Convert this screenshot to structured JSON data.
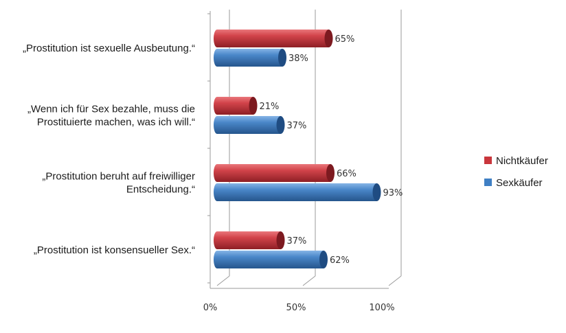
{
  "chart_data": {
    "type": "bar",
    "orientation": "horizontal",
    "style": "3d-cylinder",
    "categories": [
      [
        "„Prostitution ist sexuelle Ausbeutung.“"
      ],
      [
        "„Wenn ich für Sex bezahle, muss die",
        "Prostituierte machen, was ich will.“"
      ],
      [
        "„Prostitution beruht auf freiwilliger",
        "Entscheidung.“"
      ],
      [
        "„Prostitution ist konsensueller Sex.“"
      ]
    ],
    "series": [
      {
        "name": "Nichtkäufer",
        "color": "#c9363c",
        "values": [
          65,
          21,
          66,
          37
        ],
        "labels": [
          "65%",
          "21%",
          "66%",
          "37%"
        ]
      },
      {
        "name": "Sexkäufer",
        "color": "#3f7fc4",
        "values": [
          38,
          37,
          93,
          62
        ],
        "labels": [
          "38%",
          "37%",
          "93%",
          "62%"
        ]
      }
    ],
    "xlim": [
      0,
      100
    ],
    "xticks": [
      0,
      50,
      100
    ],
    "xtick_labels": [
      "0%",
      "50%",
      "100%"
    ],
    "grid": true,
    "legend_position": "right"
  }
}
